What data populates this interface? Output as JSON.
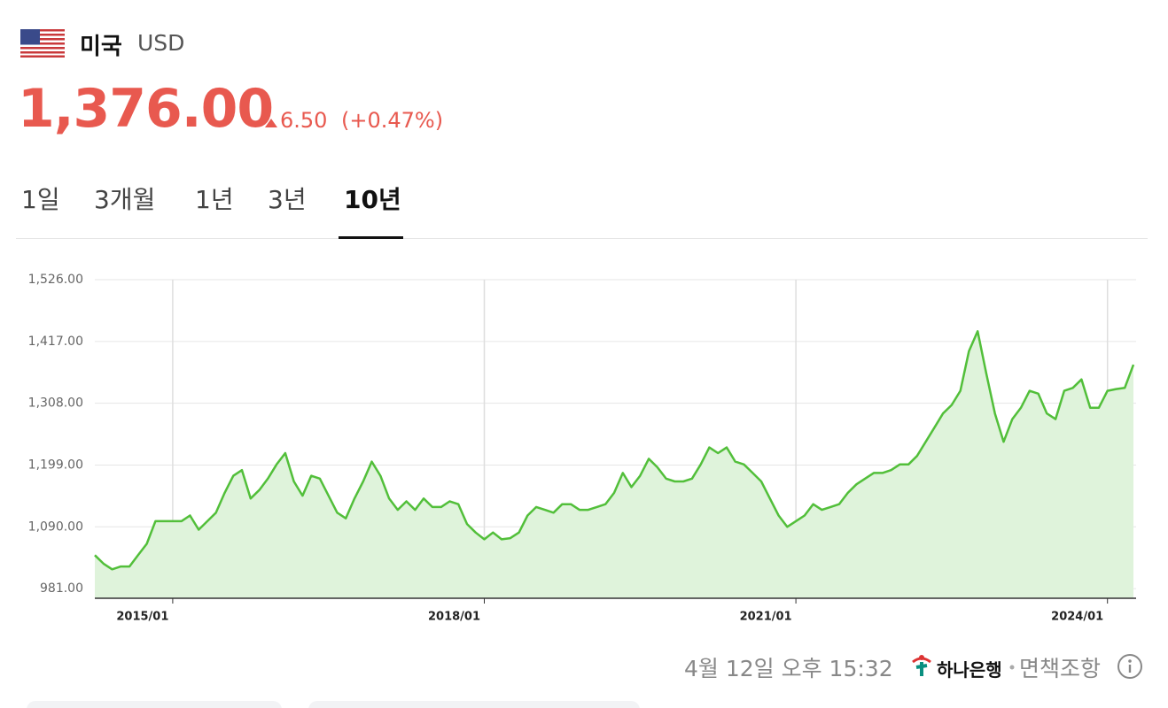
{
  "header": {
    "name": "미국",
    "code": "USD",
    "price": "1,376.00",
    "change": "6.50",
    "change_pct": "(+0.47%)"
  },
  "tabs": {
    "items": [
      "1일",
      "3개월",
      "1년",
      "3년",
      "10년"
    ],
    "active": 4
  },
  "chart_data": {
    "type": "line",
    "color": "#52bf3a",
    "fill": "#dff3db",
    "grid": true,
    "x": [
      "2014/04",
      "2014/05",
      "2014/06",
      "2014/07",
      "2014/08",
      "2014/09",
      "2014/10",
      "2014/11",
      "2014/12",
      "2015/01",
      "2015/02",
      "2015/03",
      "2015/04",
      "2015/05",
      "2015/06",
      "2015/07",
      "2015/08",
      "2015/09",
      "2015/10",
      "2015/11",
      "2015/12",
      "2016/01",
      "2016/02",
      "2016/03",
      "2016/04",
      "2016/05",
      "2016/06",
      "2016/07",
      "2016/08",
      "2016/09",
      "2016/10",
      "2016/11",
      "2016/12",
      "2017/01",
      "2017/02",
      "2017/03",
      "2017/04",
      "2017/05",
      "2017/06",
      "2017/07",
      "2017/08",
      "2017/09",
      "2017/10",
      "2017/11",
      "2017/12",
      "2018/01",
      "2018/02",
      "2018/03",
      "2018/04",
      "2018/05",
      "2018/06",
      "2018/07",
      "2018/08",
      "2018/09",
      "2018/10",
      "2018/11",
      "2018/12",
      "2019/01",
      "2019/02",
      "2019/03",
      "2019/04",
      "2019/05",
      "2019/06",
      "2019/07",
      "2019/08",
      "2019/09",
      "2019/10",
      "2019/11",
      "2019/12",
      "2020/01",
      "2020/02",
      "2020/03",
      "2020/04",
      "2020/05",
      "2020/06",
      "2020/07",
      "2020/08",
      "2020/09",
      "2020/10",
      "2020/11",
      "2020/12",
      "2021/01",
      "2021/02",
      "2021/03",
      "2021/04",
      "2021/05",
      "2021/06",
      "2021/07",
      "2021/08",
      "2021/09",
      "2021/10",
      "2021/11",
      "2021/12",
      "2022/01",
      "2022/02",
      "2022/03",
      "2022/04",
      "2022/05",
      "2022/06",
      "2022/07",
      "2022/08",
      "2022/09",
      "2022/10",
      "2022/11",
      "2022/12",
      "2023/01",
      "2023/02",
      "2023/03",
      "2023/04",
      "2023/05",
      "2023/06",
      "2023/07",
      "2023/08",
      "2023/09",
      "2023/10",
      "2023/11",
      "2023/12",
      "2024/01",
      "2024/02",
      "2024/03",
      "2024/04"
    ],
    "values": [
      1040,
      1025,
      1015,
      1020,
      1020,
      1040,
      1060,
      1100,
      1100,
      1100,
      1100,
      1110,
      1085,
      1100,
      1115,
      1150,
      1180,
      1190,
      1140,
      1155,
      1175,
      1200,
      1220,
      1170,
      1145,
      1180,
      1175,
      1145,
      1115,
      1105,
      1140,
      1170,
      1205,
      1180,
      1140,
      1120,
      1135,
      1120,
      1140,
      1125,
      1125,
      1135,
      1130,
      1095,
      1080,
      1068,
      1080,
      1068,
      1070,
      1080,
      1110,
      1125,
      1120,
      1115,
      1130,
      1130,
      1120,
      1120,
      1125,
      1130,
      1150,
      1185,
      1160,
      1180,
      1210,
      1195,
      1175,
      1170,
      1170,
      1175,
      1200,
      1230,
      1220,
      1230,
      1205,
      1200,
      1185,
      1170,
      1140,
      1110,
      1090,
      1100,
      1110,
      1130,
      1120,
      1125,
      1130,
      1150,
      1165,
      1175,
      1185,
      1185,
      1190,
      1200,
      1200,
      1215,
      1240,
      1265,
      1290,
      1305,
      1330,
      1400,
      1435,
      1360,
      1290,
      1240,
      1280,
      1300,
      1330,
      1325,
      1290,
      1280,
      1330,
      1335,
      1350,
      1300,
      1300,
      1330,
      1333,
      1335,
      1376
    ],
    "ylim": [
      964,
      1526
    ],
    "yticks": [
      {
        "value": 981,
        "label": "981.00"
      },
      {
        "value": 1090,
        "label": "1,090.00"
      },
      {
        "value": 1199,
        "label": "1,199.00"
      },
      {
        "value": 1308,
        "label": "1,308.00"
      },
      {
        "value": 1417,
        "label": "1,417.00"
      },
      {
        "value": 1526,
        "label": "1,526.00"
      }
    ],
    "xticks": [
      "2015/01",
      "2018/01",
      "2021/01",
      "2024/01"
    ]
  },
  "footer": {
    "time": "4월 12일 오후 15:32",
    "bank": "하나은행",
    "disclaimer": "면책조항"
  }
}
